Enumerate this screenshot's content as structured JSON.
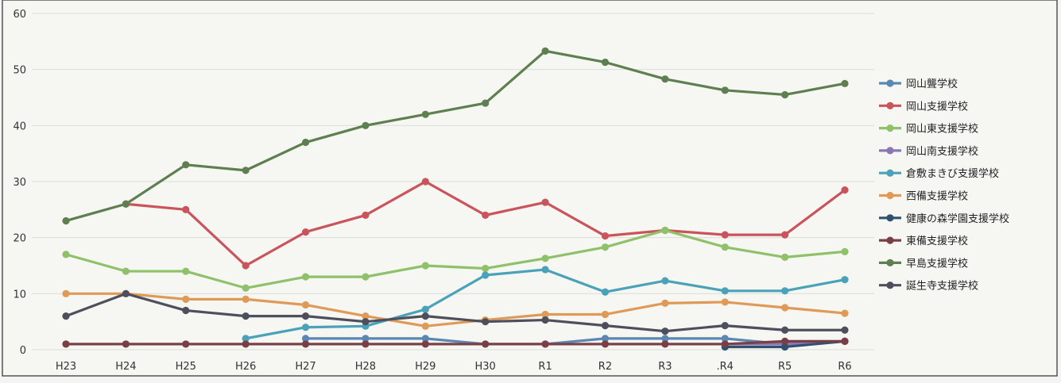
{
  "chart_data": {
    "type": "line",
    "title": "",
    "xlabel": "",
    "ylabel": "",
    "ylim": [
      0,
      60
    ],
    "yticks": [
      0,
      10,
      20,
      30,
      40,
      50,
      60
    ],
    "grid": true,
    "legend_position": "right",
    "categories": [
      "H23",
      "H24",
      "H25",
      "H26",
      "H27",
      "H28",
      "H29",
      "H30",
      "R1",
      "R2",
      "R3",
      ".R4",
      "R5",
      "R6"
    ],
    "series": [
      {
        "name": "岡山聾学校",
        "color": "#5b87b3",
        "values": [
          null,
          null,
          null,
          null,
          2,
          2,
          2,
          1,
          1,
          2,
          2,
          2,
          1,
          1.5
        ]
      },
      {
        "name": "岡山支援学校",
        "color": "#c9545c",
        "values": [
          null,
          26,
          25,
          15,
          21,
          24,
          30,
          24,
          26.3,
          20.3,
          21.3,
          20.5,
          20.5,
          28.5
        ]
      },
      {
        "name": "岡山東支援学校",
        "color": "#8fc06a",
        "values": [
          17,
          14,
          14,
          11,
          13,
          13,
          15,
          14.5,
          16.3,
          18.3,
          21.3,
          18.3,
          16.5,
          17.5
        ]
      },
      {
        "name": "岡山南支援学校",
        "color": "#8b76b4",
        "values": [
          1,
          1,
          1,
          1,
          1,
          1,
          1,
          1,
          1,
          1,
          1,
          1,
          1,
          1.5
        ]
      },
      {
        "name": "倉敷まきび支援学校",
        "color": "#4aa2b8",
        "values": [
          null,
          null,
          null,
          2,
          4,
          4.2,
          7.2,
          13.3,
          14.3,
          10.3,
          12.3,
          10.5,
          10.5,
          12.5
        ]
      },
      {
        "name": "西備支援学校",
        "color": "#e09a58",
        "values": [
          10,
          10,
          9,
          9,
          8,
          6,
          4.2,
          5.3,
          6.3,
          6.3,
          8.3,
          8.5,
          7.5,
          6.5
        ]
      },
      {
        "name": "健康の森学園支援学校",
        "color": "#2f5070",
        "values": [
          null,
          null,
          null,
          null,
          null,
          null,
          null,
          null,
          null,
          null,
          null,
          0.5,
          0.5,
          1.5
        ]
      },
      {
        "name": "東備支援学校",
        "color": "#7a3f45",
        "values": [
          1,
          1,
          1,
          1,
          1,
          1,
          1,
          1,
          1,
          1,
          1,
          1,
          1.5,
          1.5
        ]
      },
      {
        "name": "早島支援学校",
        "color": "#5e7f4f",
        "values": [
          23,
          26,
          33,
          32,
          37,
          40,
          42,
          44,
          53.3,
          51.3,
          48.3,
          46.3,
          45.5,
          47.5
        ]
      },
      {
        "name": "誕生寺支援学校",
        "color": "#4d4f5c",
        "values": [
          6,
          10,
          7,
          6,
          6,
          5,
          6,
          5,
          5.3,
          4.3,
          3.3,
          4.3,
          3.5,
          3.5
        ]
      }
    ]
  }
}
